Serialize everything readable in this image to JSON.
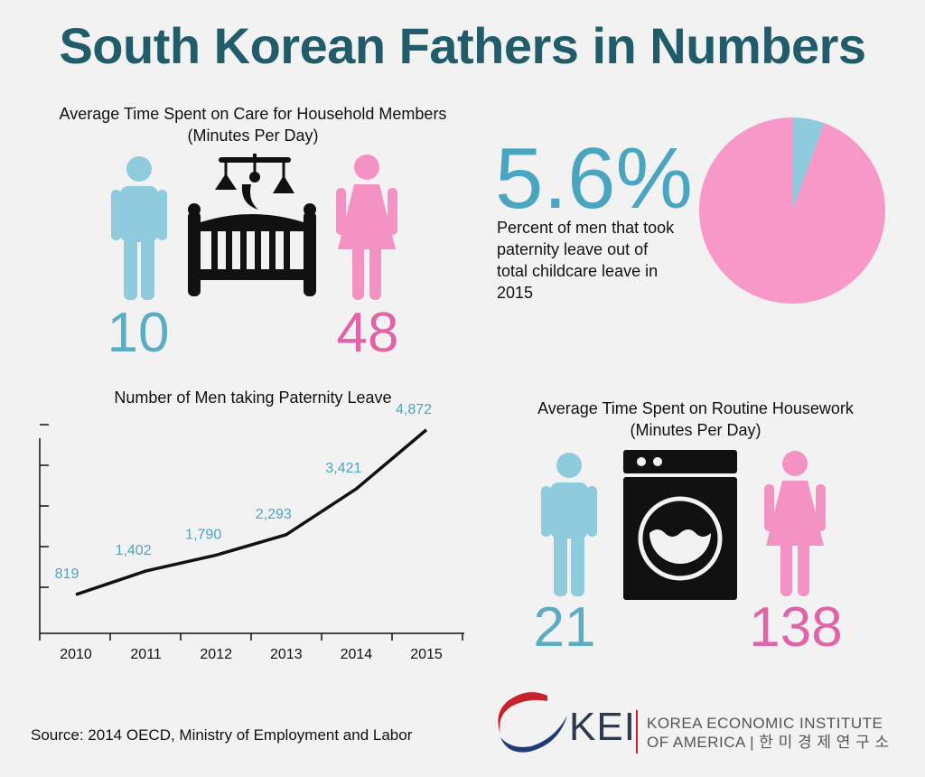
{
  "title": "South Korean Fathers in Numbers",
  "colors": {
    "title": "#215c6b",
    "male": "#5badc4",
    "male_figure": "#8ecbdc",
    "female": "#e064a8",
    "female_figure": "#f492c4",
    "pie_male": "#8ecbdc",
    "pie_female": "#f798c8",
    "line": "#111111"
  },
  "care": {
    "title_line1": "Average Time Spent on Care for Household Members",
    "title_line2": "(Minutes Per Day)",
    "men": "10",
    "women": "48",
    "icons": [
      "man-icon",
      "crib-icon",
      "woman-icon"
    ]
  },
  "paternity_stat": {
    "percent": "5.6%",
    "description_lines": [
      "Percent of men that took",
      "paternity leave out of",
      "total childcare leave in",
      "2015"
    ],
    "pie_share_men": 5.6
  },
  "housework": {
    "title_line1": "Average Time Spent on Routine Housework",
    "title_line2": "(Minutes Per Day)",
    "men": "21",
    "women": "138",
    "icons": [
      "man-icon",
      "washing-machine-icon",
      "woman-icon"
    ]
  },
  "source": "Source: 2014 OECD, Ministry of Employment and Labor",
  "logo": {
    "name": "KEI",
    "line1": "KOREA ECONOMIC INSTITUTE",
    "line2": "OF AMERICA | 한 미 경 제 연 구 소"
  },
  "chart_data": [
    {
      "type": "pie",
      "categories": [
        "Men",
        "Women"
      ],
      "values": [
        5.6,
        94.4
      ]
    },
    {
      "type": "line",
      "title": "Number of Men taking Paternity Leave",
      "x": [
        "2010",
        "2011",
        "2012",
        "2013",
        "2014",
        "2015"
      ],
      "values": [
        819,
        1402,
        1790,
        2293,
        3421,
        4872
      ],
      "labels": [
        "819",
        "1,402",
        "1,790",
        "2,293",
        "3,421",
        "4,872"
      ],
      "ylim": [
        0,
        5000
      ],
      "grid": false
    }
  ]
}
